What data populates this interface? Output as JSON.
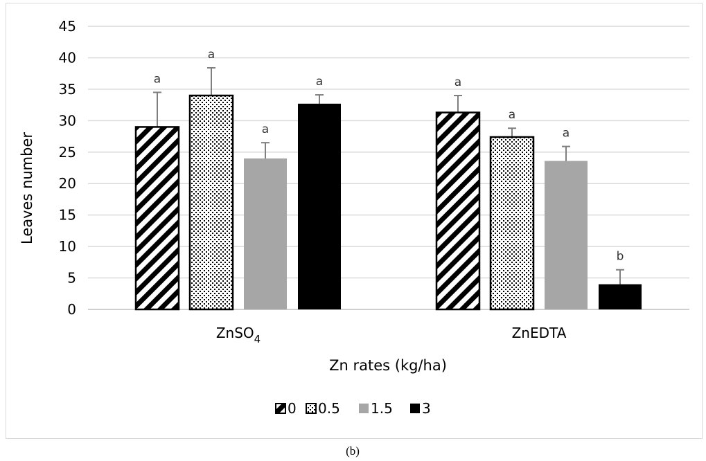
{
  "chart_data": {
    "type": "bar",
    "categories": [
      "ZnSO4",
      "ZnEDTA"
    ],
    "category_display": [
      {
        "main": "ZnSO",
        "sub": "4"
      },
      {
        "main": "ZnEDTA",
        "sub": ""
      }
    ],
    "series": [
      {
        "name": "0",
        "values": [
          29,
          31.3
        ],
        "errors": [
          5.5,
          2.7
        ],
        "letters": [
          "a",
          "a"
        ],
        "pattern": "diagonal-stripes"
      },
      {
        "name": "0.5",
        "values": [
          34,
          27.4
        ],
        "errors": [
          4.4,
          1.4
        ],
        "letters": [
          "a",
          "a"
        ],
        "pattern": "dots"
      },
      {
        "name": "1.5",
        "values": [
          24,
          23.6
        ],
        "errors": [
          2.5,
          2.3
        ],
        "letters": [
          "a",
          "a"
        ],
        "pattern": "solid-gray"
      },
      {
        "name": "3",
        "values": [
          32.7,
          4
        ],
        "errors": [
          1.4,
          2.3
        ],
        "letters": [
          "a",
          "b"
        ],
        "pattern": "solid-black"
      }
    ],
    "xlabel": "Zn rates (kg/ha)",
    "ylabel": "Leaves number",
    "ylim": [
      0,
      45
    ],
    "yticks": [
      0,
      5,
      10,
      15,
      20,
      25,
      30,
      35,
      40,
      45
    ],
    "grid": true,
    "legend_position": "bottom",
    "colors": {
      "gray": "#a6a6a6",
      "black": "#000000",
      "grid": "#d9d9d9",
      "error": "#7f7f7f"
    }
  },
  "caption": "(b)"
}
